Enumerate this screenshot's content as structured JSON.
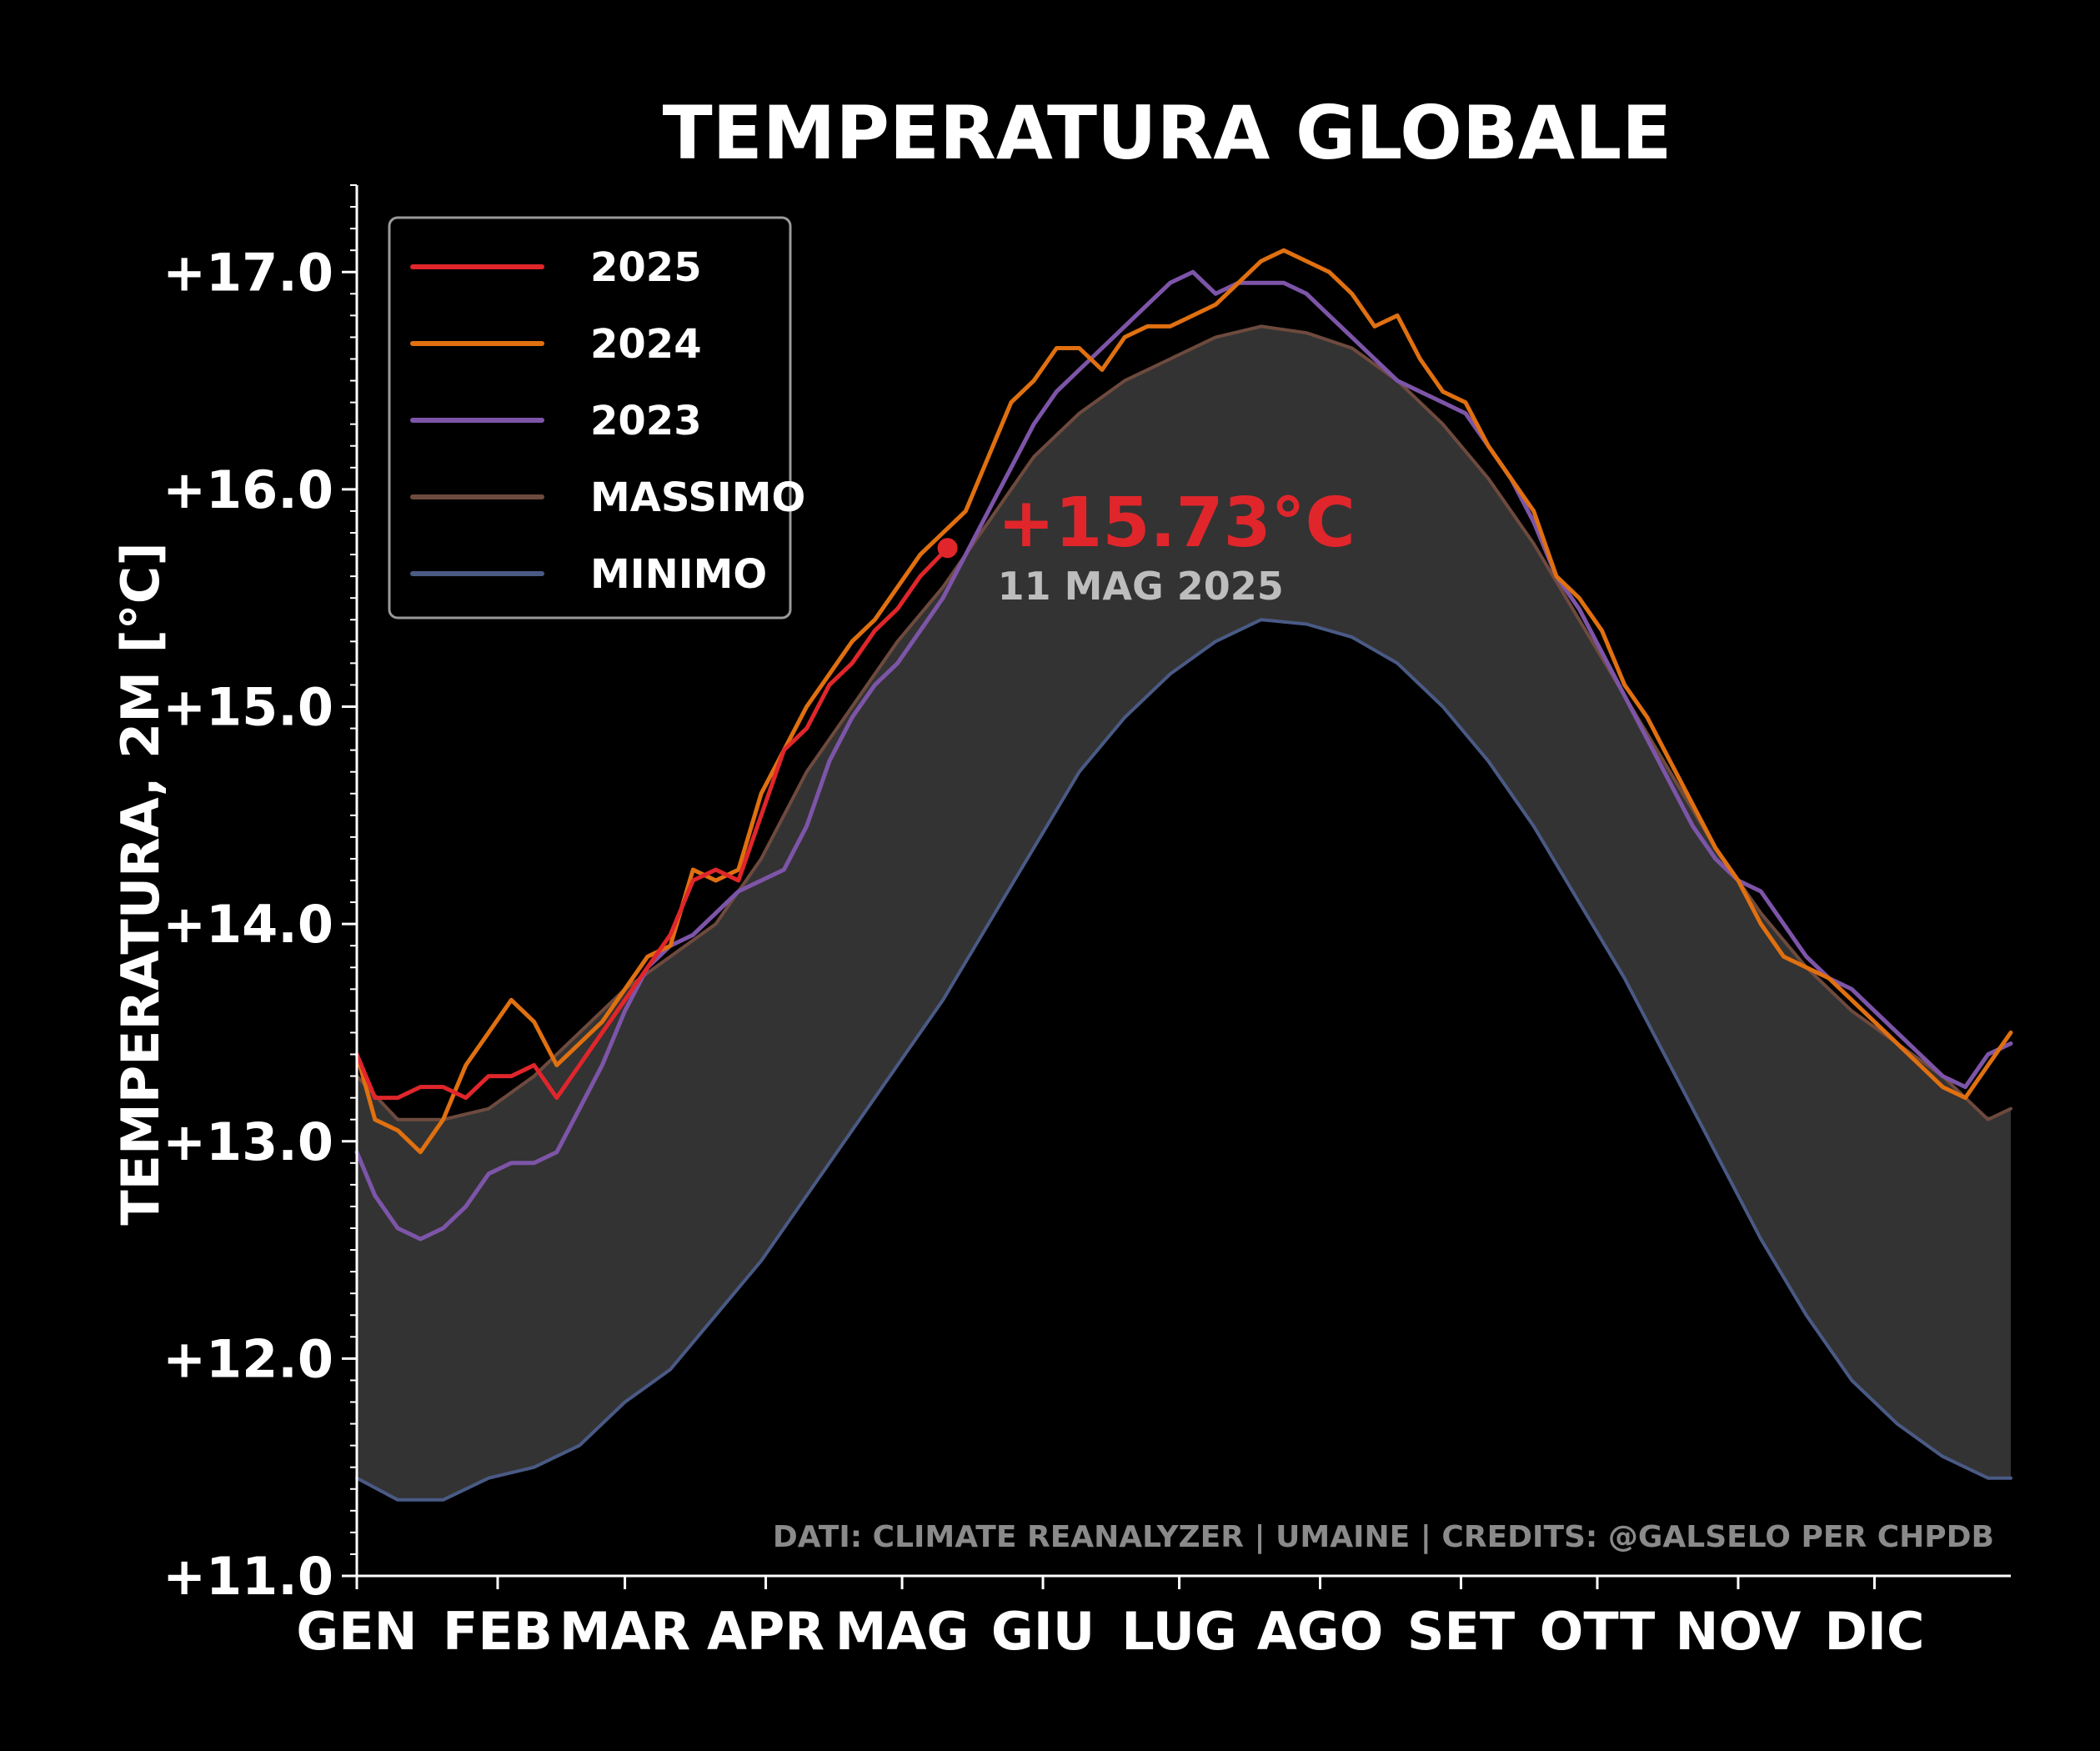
{
  "chart_data": {
    "type": "line",
    "title": "TEMPERATURA GLOBALE",
    "ylabel": "TEMPERATURA, 2M [°C]",
    "ylim": [
      11.0,
      17.4
    ],
    "y_ticks": [
      11.0,
      12.0,
      13.0,
      14.0,
      15.0,
      16.0,
      17.0
    ],
    "y_tick_labels": [
      "+11.0",
      "+12.0",
      "+13.0",
      "+14.0",
      "+15.0",
      "+16.0",
      "+17.0"
    ],
    "x_unit": "day of year",
    "xlim": [
      1,
      365
    ],
    "x_ticks": [
      1,
      32,
      60,
      91,
      121,
      152,
      182,
      213,
      244,
      274,
      305,
      335
    ],
    "x_tick_labels": [
      "GEN",
      "FEB",
      "MAR",
      "APR",
      "MAG",
      "GIU",
      "LUG",
      "AGO",
      "SET",
      "OTT",
      "NOV",
      "DIC"
    ],
    "background": "#000000",
    "band_color": "#333333",
    "grid": false,
    "legend": {
      "position": "top-left",
      "entries": [
        {
          "label": "2025",
          "color": "#e0262b"
        },
        {
          "label": "2024",
          "color": "#e07010"
        },
        {
          "label": "2023",
          "color": "#7d55a8"
        },
        {
          "label": "MASSIMO",
          "color": "#6e4a3e"
        },
        {
          "label": "MINIMO",
          "color": "#4a5a85"
        }
      ]
    },
    "series": [
      {
        "name": "2025",
        "color": "#e0262b",
        "x": [
          1,
          5,
          10,
          15,
          20,
          25,
          30,
          35,
          40,
          45,
          50,
          55,
          60,
          65,
          70,
          75,
          80,
          85,
          90,
          95,
          100,
          105,
          110,
          115,
          120,
          125,
          131
        ],
        "y": [
          13.4,
          13.2,
          13.2,
          13.25,
          13.25,
          13.2,
          13.3,
          13.3,
          13.35,
          13.2,
          13.35,
          13.5,
          13.65,
          13.8,
          13.95,
          14.2,
          14.25,
          14.2,
          14.5,
          14.8,
          14.9,
          15.1,
          15.2,
          15.35,
          15.45,
          15.6,
          15.73
        ]
      },
      {
        "name": "2024",
        "color": "#e07010",
        "x": [
          1,
          5,
          10,
          15,
          20,
          25,
          30,
          35,
          40,
          45,
          50,
          55,
          60,
          65,
          70,
          75,
          80,
          85,
          90,
          95,
          100,
          105,
          110,
          115,
          120,
          125,
          130,
          135,
          140,
          145,
          150,
          155,
          160,
          165,
          170,
          175,
          180,
          185,
          190,
          195,
          200,
          205,
          210,
          215,
          220,
          225,
          230,
          235,
          240,
          245,
          250,
          255,
          260,
          265,
          270,
          275,
          280,
          285,
          290,
          295,
          300,
          305,
          310,
          315,
          320,
          325,
          330,
          335,
          340,
          345,
          350,
          355,
          360,
          365
        ],
        "y": [
          13.4,
          13.1,
          13.05,
          12.95,
          13.1,
          13.35,
          13.5,
          13.65,
          13.55,
          13.35,
          13.45,
          13.55,
          13.7,
          13.85,
          13.9,
          14.25,
          14.2,
          14.25,
          14.6,
          14.8,
          15.0,
          15.15,
          15.3,
          15.4,
          15.55,
          15.7,
          15.8,
          15.9,
          16.15,
          16.4,
          16.5,
          16.65,
          16.65,
          16.55,
          16.7,
          16.75,
          16.75,
          16.8,
          16.85,
          16.95,
          17.05,
          17.1,
          17.05,
          17.0,
          16.9,
          16.75,
          16.8,
          16.6,
          16.45,
          16.4,
          16.2,
          16.05,
          15.9,
          15.6,
          15.5,
          15.35,
          15.1,
          14.95,
          14.75,
          14.55,
          14.35,
          14.2,
          14.0,
          13.85,
          13.8,
          13.75,
          13.65,
          13.55,
          13.45,
          13.35,
          13.25,
          13.2,
          13.35,
          13.5
        ]
      },
      {
        "name": "2023",
        "color": "#7d55a8",
        "x": [
          1,
          5,
          10,
          15,
          20,
          25,
          30,
          35,
          40,
          45,
          50,
          55,
          60,
          65,
          70,
          75,
          80,
          85,
          90,
          95,
          100,
          105,
          110,
          115,
          120,
          125,
          130,
          135,
          140,
          145,
          150,
          155,
          160,
          165,
          170,
          175,
          180,
          185,
          190,
          195,
          200,
          205,
          210,
          215,
          220,
          225,
          230,
          235,
          240,
          245,
          250,
          255,
          260,
          265,
          270,
          275,
          280,
          285,
          290,
          295,
          300,
          305,
          310,
          315,
          320,
          325,
          330,
          335,
          340,
          345,
          350,
          355,
          360,
          365
        ],
        "y": [
          12.95,
          12.75,
          12.6,
          12.55,
          12.6,
          12.7,
          12.85,
          12.9,
          12.9,
          12.95,
          13.15,
          13.35,
          13.6,
          13.8,
          13.9,
          13.95,
          14.05,
          14.15,
          14.2,
          14.25,
          14.45,
          14.75,
          14.95,
          15.1,
          15.2,
          15.35,
          15.5,
          15.7,
          15.9,
          16.1,
          16.3,
          16.45,
          16.55,
          16.65,
          16.75,
          16.85,
          16.95,
          17.0,
          16.9,
          16.95,
          16.95,
          16.95,
          16.9,
          16.8,
          16.7,
          16.6,
          16.5,
          16.45,
          16.4,
          16.35,
          16.2,
          16.05,
          15.85,
          15.6,
          15.45,
          15.25,
          15.05,
          14.85,
          14.65,
          14.45,
          14.3,
          14.2,
          14.15,
          14.0,
          13.85,
          13.75,
          13.7,
          13.6,
          13.5,
          13.4,
          13.3,
          13.25,
          13.4,
          13.45
        ]
      },
      {
        "name": "MASSIMO",
        "color": "#6e4a3e",
        "x": [
          1,
          10,
          20,
          30,
          40,
          50,
          60,
          70,
          80,
          90,
          100,
          110,
          120,
          130,
          140,
          150,
          160,
          170,
          180,
          190,
          200,
          210,
          220,
          230,
          240,
          250,
          260,
          270,
          280,
          290,
          300,
          310,
          320,
          330,
          340,
          350,
          360,
          365
        ],
        "y": [
          13.3,
          13.1,
          13.1,
          13.15,
          13.3,
          13.5,
          13.7,
          13.85,
          14.0,
          14.3,
          14.7,
          15.0,
          15.3,
          15.55,
          15.85,
          16.15,
          16.35,
          16.5,
          16.6,
          16.7,
          16.75,
          16.72,
          16.65,
          16.5,
          16.3,
          16.05,
          15.75,
          15.4,
          15.05,
          14.7,
          14.35,
          14.05,
          13.8,
          13.6,
          13.45,
          13.3,
          13.1,
          13.15
        ]
      },
      {
        "name": "MINIMO",
        "color": "#4a5a85",
        "x": [
          1,
          10,
          20,
          30,
          40,
          50,
          60,
          70,
          80,
          90,
          100,
          110,
          120,
          130,
          140,
          150,
          160,
          170,
          180,
          190,
          200,
          210,
          220,
          230,
          240,
          250,
          260,
          270,
          280,
          290,
          300,
          310,
          320,
          330,
          340,
          350,
          360,
          365
        ],
        "y": [
          11.45,
          11.35,
          11.35,
          11.45,
          11.5,
          11.6,
          11.8,
          11.95,
          12.2,
          12.45,
          12.75,
          13.05,
          13.35,
          13.65,
          14.0,
          14.35,
          14.7,
          14.95,
          15.15,
          15.3,
          15.4,
          15.38,
          15.32,
          15.2,
          15.0,
          14.75,
          14.45,
          14.1,
          13.75,
          13.35,
          12.95,
          12.55,
          12.2,
          11.9,
          11.7,
          11.55,
          11.45,
          11.45
        ]
      }
    ],
    "annotation": {
      "value_text": "+15.73°C",
      "date_text": "11 MAG 2025",
      "x": 131,
      "y": 15.73,
      "value_color": "#e0262b",
      "date_color": "#bdbdbd"
    },
    "credits": "DATI: CLIMATE REANALYZER | UMAINE  | CREDITS: @GALSELO PER CHPDB"
  }
}
